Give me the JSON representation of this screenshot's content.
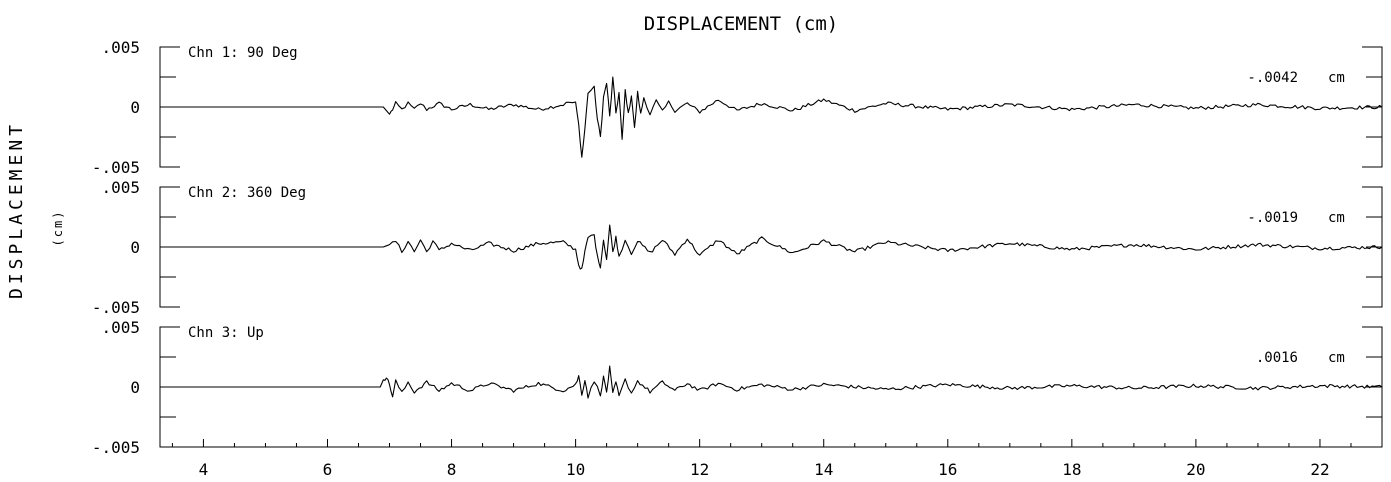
{
  "chart_data": {
    "type": "line",
    "title": "DISPLACEMENT (cm)",
    "ylabel": "DISPLACEMENT",
    "ylabel_unit": "(cm)",
    "xlim": [
      3.3,
      23.0
    ],
    "x_ticks": [
      4,
      6,
      8,
      10,
      12,
      14,
      16,
      18,
      20,
      22
    ],
    "x_tick_labels": [
      "4",
      "6",
      "8",
      "10",
      "12",
      "14",
      "16",
      "18",
      "20",
      "22"
    ],
    "ylim": [
      -0.005,
      0.005
    ],
    "y_tick_labels": [
      ".005",
      "0",
      "-.005"
    ],
    "grid": false,
    "series": [
      {
        "name": "Chn 1: 90 Deg",
        "peak_label": "-.0042",
        "unit": "cm",
        "onset": 7.0,
        "x": [
          3.3,
          6.9,
          7.0,
          7.05,
          7.1,
          7.2,
          7.3,
          7.4,
          7.5,
          7.6,
          7.8,
          8.0,
          8.3,
          8.6,
          9.0,
          9.4,
          9.8,
          9.9,
          10.0,
          10.05,
          10.1,
          10.15,
          10.2,
          10.3,
          10.35,
          10.4,
          10.45,
          10.5,
          10.55,
          10.6,
          10.65,
          10.7,
          10.75,
          10.8,
          10.85,
          10.9,
          10.95,
          11.0,
          11.05,
          11.1,
          11.2,
          11.3,
          11.4,
          11.5,
          11.6,
          11.8,
          12.0,
          12.3,
          12.6,
          13.0,
          13.5,
          14.0,
          14.5,
          15.0,
          16.0,
          17.0,
          18.0,
          19.0,
          20.0,
          21.0,
          22.0,
          23.0
        ],
        "values": [
          0.0,
          0.0,
          -0.0006,
          -0.0002,
          0.0003,
          -0.0002,
          0.0003,
          -0.0002,
          0.0003,
          -0.0002,
          0.0003,
          -0.0002,
          0.0002,
          -0.0002,
          0.0002,
          -0.0002,
          0.0002,
          0.0004,
          0.0003,
          -0.0015,
          -0.0042,
          -0.0018,
          0.0012,
          0.0016,
          -0.001,
          -0.0025,
          0.0008,
          0.002,
          -0.0008,
          0.0024,
          -0.0005,
          0.0012,
          -0.0028,
          0.0014,
          -0.0006,
          0.001,
          -0.0018,
          0.0012,
          -0.0006,
          0.0008,
          -0.0006,
          0.0005,
          -0.0004,
          0.0004,
          -0.0003,
          0.0003,
          -0.0004,
          0.0006,
          -0.0003,
          0.0003,
          -0.0003,
          0.0006,
          -0.0003,
          0.0003,
          -0.0002,
          0.0002,
          -0.0002,
          0.0002,
          -0.0001,
          0.0002,
          -0.0001,
          0.0
        ]
      },
      {
        "name": "Chn 2: 360 Deg",
        "peak_label": "-.0019",
        "unit": "cm",
        "onset": 7.0,
        "x": [
          3.3,
          6.9,
          7.0,
          7.1,
          7.2,
          7.3,
          7.4,
          7.5,
          7.6,
          7.7,
          7.8,
          8.0,
          8.3,
          8.6,
          9.0,
          9.4,
          9.8,
          10.0,
          10.05,
          10.1,
          10.15,
          10.2,
          10.3,
          10.35,
          10.4,
          10.45,
          10.5,
          10.55,
          10.6,
          10.65,
          10.7,
          10.8,
          10.9,
          11.0,
          11.2,
          11.4,
          11.6,
          11.8,
          12.0,
          12.3,
          12.6,
          13.0,
          13.5,
          14.0,
          14.5,
          15.0,
          16.0,
          17.0,
          18.0,
          19.0,
          20.0,
          21.0,
          22.0,
          23.0
        ],
        "values": [
          0.0,
          0.0,
          0.0002,
          0.0005,
          -0.0004,
          0.0005,
          -0.0004,
          0.0006,
          -0.0004,
          0.0005,
          -0.0003,
          0.0003,
          -0.0003,
          0.0003,
          -0.0003,
          0.0003,
          0.0004,
          -0.0002,
          -0.0015,
          -0.0019,
          -0.0004,
          0.0008,
          0.001,
          -0.0008,
          -0.0016,
          0.0006,
          -0.001,
          0.0018,
          -0.0004,
          0.0008,
          -0.0008,
          0.0006,
          -0.0005,
          0.0005,
          -0.0005,
          0.0006,
          -0.0006,
          0.0007,
          -0.0007,
          0.0006,
          -0.0006,
          0.0007,
          -0.0005,
          0.0005,
          -0.0004,
          0.0004,
          -0.0003,
          0.0003,
          -0.0002,
          0.0002,
          -0.0002,
          0.0002,
          -0.0001,
          0.0
        ]
      },
      {
        "name": "Chn 3: Up",
        "peak_label": ".0016",
        "unit": "cm",
        "onset": 6.9,
        "x": [
          3.3,
          6.85,
          6.9,
          6.95,
          7.0,
          7.05,
          7.1,
          7.2,
          7.3,
          7.4,
          7.6,
          7.8,
          8.0,
          8.3,
          8.6,
          9.0,
          9.4,
          9.8,
          10.0,
          10.05,
          10.1,
          10.15,
          10.2,
          10.3,
          10.4,
          10.45,
          10.5,
          10.55,
          10.6,
          10.65,
          10.7,
          10.8,
          10.9,
          11.0,
          11.2,
          11.4,
          11.6,
          11.8,
          12.0,
          12.3,
          12.6,
          13.0,
          13.5,
          14.0,
          15.0,
          16.0,
          17.0,
          18.0,
          19.0,
          20.0,
          21.0,
          22.0,
          23.0
        ],
        "values": [
          0.0,
          0.0,
          0.0006,
          0.0008,
          0.0002,
          -0.0008,
          0.0005,
          -0.0005,
          0.0004,
          -0.0004,
          0.0004,
          -0.0003,
          0.0003,
          -0.0003,
          0.0003,
          -0.0003,
          0.0003,
          -0.0003,
          0.0002,
          0.0009,
          -0.0006,
          0.0006,
          -0.0008,
          0.0005,
          -0.0006,
          0.0008,
          -0.0004,
          0.0016,
          -0.0006,
          0.0004,
          -0.0008,
          0.0006,
          -0.0005,
          0.0005,
          -0.0004,
          0.0004,
          -0.0003,
          0.0003,
          -0.0003,
          0.0003,
          -0.0002,
          0.0002,
          -0.0002,
          0.0002,
          -0.0002,
          0.0002,
          -0.0001,
          0.0001,
          -0.0001,
          0.0001,
          -0.0001,
          0.0001,
          0.0
        ]
      }
    ]
  }
}
